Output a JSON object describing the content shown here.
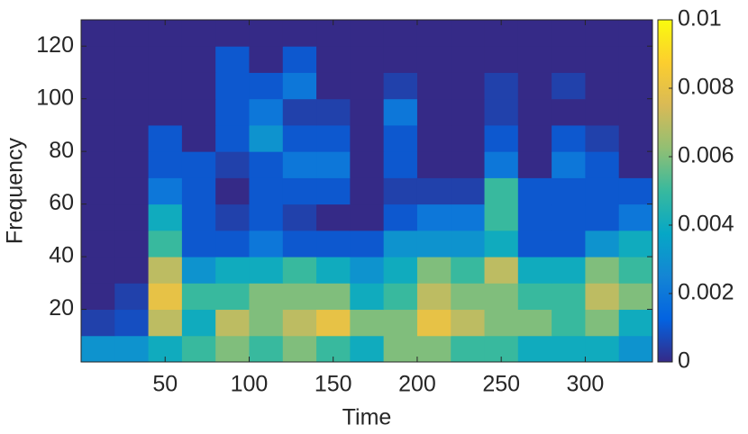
{
  "chart_data": {
    "type": "heatmap",
    "xlabel": "Time",
    "ylabel": "Frequency",
    "x": [
      10,
      30,
      50,
      70,
      90,
      110,
      130,
      150,
      170,
      190,
      210,
      230,
      250,
      270,
      290,
      310,
      330
    ],
    "y": [
      5,
      15,
      25,
      35,
      45,
      55,
      65,
      75,
      85,
      95,
      105,
      115,
      125
    ],
    "z": [
      [
        0.003,
        0.003,
        0.004,
        0.005,
        0.006,
        0.005,
        0.006,
        0.005,
        0.004,
        0.006,
        0.006,
        0.005,
        0.005,
        0.004,
        0.004,
        0.004,
        0.003
      ],
      [
        0.0005,
        0.0008,
        0.007,
        0.004,
        0.007,
        0.006,
        0.007,
        0.008,
        0.006,
        0.006,
        0.008,
        0.007,
        0.006,
        0.006,
        0.005,
        0.006,
        0.004
      ],
      [
        0,
        0.0005,
        0.008,
        0.005,
        0.005,
        0.006,
        0.006,
        0.006,
        0.004,
        0.005,
        0.007,
        0.006,
        0.006,
        0.005,
        0.005,
        0.007,
        0.006
      ],
      [
        0,
        0,
        0.007,
        0.003,
        0.004,
        0.004,
        0.005,
        0.004,
        0.003,
        0.004,
        0.006,
        0.005,
        0.007,
        0.004,
        0.004,
        0.006,
        0.005
      ],
      [
        0,
        0,
        0.005,
        0.001,
        0.001,
        0.002,
        0.001,
        0.001,
        0.001,
        0.003,
        0.003,
        0.003,
        0.004,
        0.001,
        0.001,
        0.003,
        0.004
      ],
      [
        0,
        0,
        0.004,
        0.001,
        0.0005,
        0.001,
        0.0005,
        0,
        0,
        0.001,
        0.002,
        0.002,
        0.005,
        0.001,
        0.001,
        0.001,
        0.002
      ],
      [
        0,
        0,
        0.002,
        0.001,
        0,
        0.001,
        0.001,
        0.001,
        0,
        0.0005,
        0.0005,
        0.0005,
        0.005,
        0.001,
        0.001,
        0.001,
        0.001
      ],
      [
        0,
        0,
        0.001,
        0.001,
        0.0005,
        0.001,
        0.002,
        0.002,
        0,
        0.001,
        0,
        0,
        0.002,
        0,
        0.002,
        0.001,
        0
      ],
      [
        0,
        0,
        0.001,
        0,
        0.001,
        0.003,
        0.001,
        0.001,
        0,
        0.001,
        0,
        0,
        0.001,
        0,
        0.001,
        0.0005,
        0
      ],
      [
        0,
        0,
        0,
        0,
        0.001,
        0.002,
        0.0005,
        0.0005,
        0,
        0.002,
        0,
        0,
        0.0005,
        0,
        0,
        0,
        0
      ],
      [
        0,
        0,
        0,
        0,
        0.001,
        0.001,
        0.002,
        0,
        0,
        0.0005,
        0,
        0,
        0.0005,
        0,
        0.0005,
        0,
        0
      ],
      [
        0,
        0,
        0,
        0,
        0.001,
        0,
        0.001,
        0,
        0,
        0,
        0,
        0,
        0,
        0,
        0,
        0,
        0
      ],
      [
        0,
        0,
        0,
        0,
        0,
        0,
        0,
        0,
        0,
        0,
        0,
        0,
        0,
        0,
        0,
        0,
        0
      ]
    ],
    "xlim": [
      0,
      340
    ],
    "ylim": [
      0,
      130
    ],
    "xticks": [
      50,
      100,
      150,
      200,
      250,
      300
    ],
    "yticks": [
      20,
      40,
      60,
      80,
      100,
      120
    ],
    "clim": [
      0,
      0.01
    ],
    "cticks": [
      0,
      0.002,
      0.004,
      0.006,
      0.008,
      0.01
    ],
    "colormap": [
      "#352a87",
      "#0363e1",
      "#1485d4",
      "#06a7c6",
      "#38b99e",
      "#92bf73",
      "#d9ba56",
      "#fcce2e",
      "#f9fb0e"
    ]
  }
}
